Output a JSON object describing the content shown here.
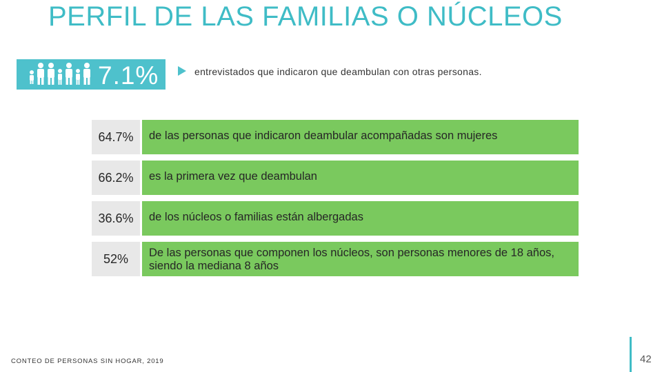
{
  "title": "PERFIL DE LAS FAMILIAS O NÚCLEOS",
  "banner": {
    "value": "7.1%",
    "text": "entrevistados que indicaron que deambulan  con otras personas.",
    "icon": "family-icon",
    "color": "#4ec1cc"
  },
  "stats": [
    {
      "value": "64.7%",
      "text": "de las personas que indicaron deambular acompañadas son mujeres"
    },
    {
      "value": "66.2%",
      "text": "es la primera vez que deambulan"
    },
    {
      "value": "36.6%",
      "text": "de los núcleos o familias están  albergadas"
    },
    {
      "value": "52%",
      "text": "De las personas que componen los núcleos, son personas menores de 18 años, siendo la mediana 8 años"
    }
  ],
  "colors": {
    "accent": "#3fbcc6",
    "stat_bg": "#7ac95e",
    "value_bg": "#e8e8e8"
  },
  "footer": "CONTEO DE PERSONAS SIN HOGAR, 2019",
  "page_number": "42"
}
